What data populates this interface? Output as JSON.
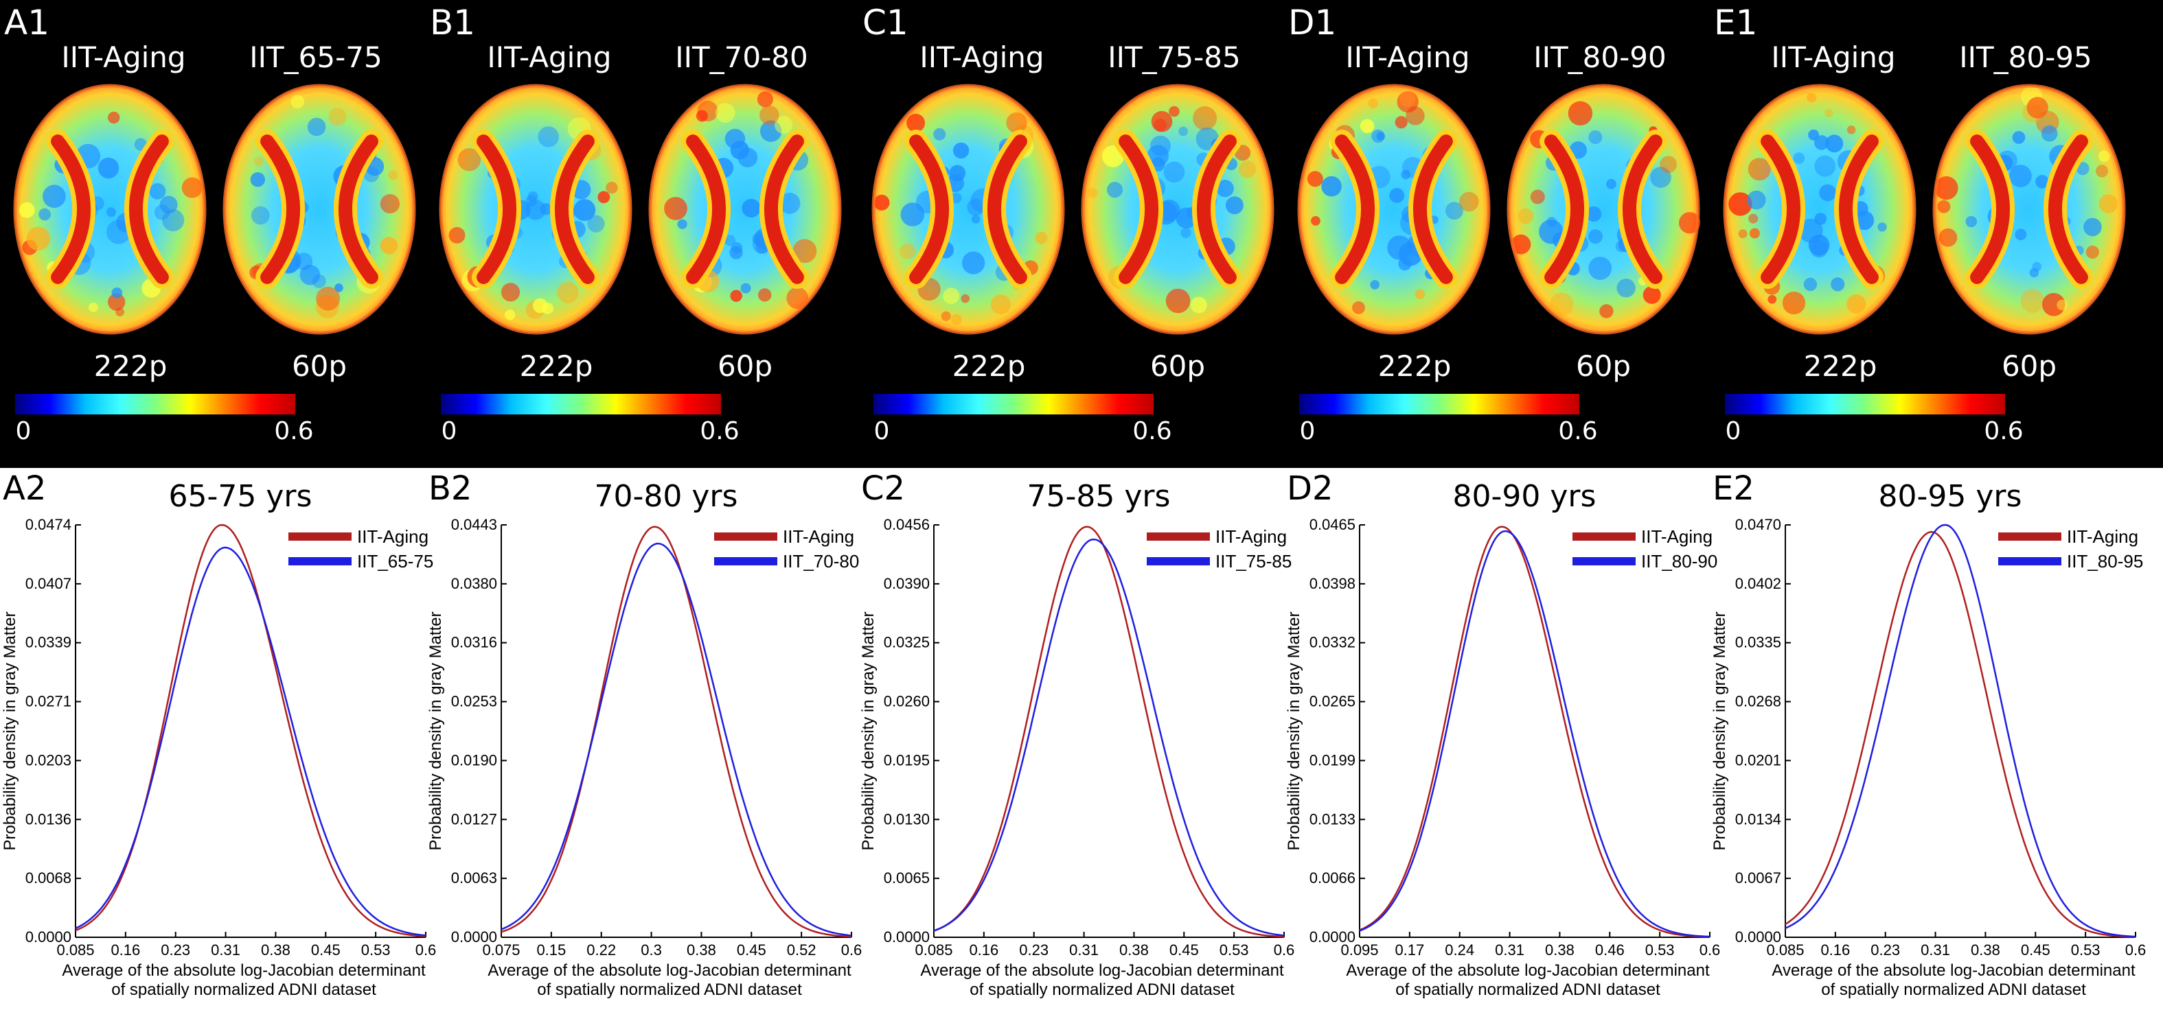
{
  "colors": {
    "series_aging": "#b01e1e",
    "series_study": "#1e1ee0",
    "background_top": "#000000",
    "colormap": [
      "#00007f",
      "#0000ff",
      "#00bfff",
      "#40ffff",
      "#80ff80",
      "#ffff00",
      "#ff8000",
      "#ff0000",
      "#bf0000"
    ]
  },
  "brain_panels": [
    {
      "letter": "A1",
      "left_title": "IIT-Aging",
      "right_title": "IIT_65-75",
      "left_count": "222p",
      "right_count": "60p",
      "cbar_min": "0",
      "cbar_max": "0.6"
    },
    {
      "letter": "B1",
      "left_title": "IIT-Aging",
      "right_title": "IIT_70-80",
      "left_count": "222p",
      "right_count": "60p",
      "cbar_min": "0",
      "cbar_max": "0.6"
    },
    {
      "letter": "C1",
      "left_title": "IIT-Aging",
      "right_title": "IIT_75-85",
      "left_count": "222p",
      "right_count": "60p",
      "cbar_min": "0",
      "cbar_max": "0.6"
    },
    {
      "letter": "D1",
      "left_title": "IIT-Aging",
      "right_title": "IIT_80-90",
      "left_count": "222p",
      "right_count": "60p",
      "cbar_min": "0",
      "cbar_max": "0.6"
    },
    {
      "letter": "E1",
      "left_title": "IIT-Aging",
      "right_title": "IIT_80-95",
      "left_count": "222p",
      "right_count": "60p",
      "cbar_min": "0",
      "cbar_max": "0.6"
    }
  ],
  "chart_data": [
    {
      "type": "line",
      "letter": "A2",
      "title": "65-75 yrs",
      "ylabel": "Probability density in gray Matter",
      "xlabel_line1": "Average of the absolute log-Jacobian determinant",
      "xlabel_line2": "of spatially normalized ADNI dataset",
      "xlim": [
        0.085,
        0.6
      ],
      "ylim": [
        0,
        0.0474
      ],
      "xticks": [
        "0.085",
        "0.16",
        "0.23",
        "0.31",
        "0.38",
        "0.45",
        "0.53",
        "0.6"
      ],
      "yticks": [
        "0.0000",
        "0.0068",
        "0.0136",
        "0.0203",
        "0.0271",
        "0.0339",
        "0.0407",
        "0.0474"
      ],
      "legend": [
        "IIT-Aging",
        "IIT_65-75"
      ],
      "series": [
        {
          "name": "IIT-Aging",
          "peak": 0.0474,
          "mu": 0.3,
          "sl": 0.075,
          "sr": 0.086
        },
        {
          "name": "IIT_65-75",
          "peak": 0.0448,
          "mu": 0.305,
          "sl": 0.08,
          "sr": 0.09
        }
      ]
    },
    {
      "type": "line",
      "letter": "B2",
      "title": "70-80 yrs",
      "ylabel": "Probability density in gray Matter",
      "xlabel_line1": "Average of the absolute log-Jacobian determinant",
      "xlabel_line2": "of spatially normalized ADNI dataset",
      "xlim": [
        0.075,
        0.6
      ],
      "ylim": [
        0,
        0.0443
      ],
      "xticks": [
        "0.075",
        "0.15",
        "0.22",
        "0.3",
        "0.38",
        "0.45",
        "0.52",
        "0.6"
      ],
      "yticks": [
        "0.0000",
        "0.0063",
        "0.0127",
        "0.0190",
        "0.0253",
        "0.0316",
        "0.0380",
        "0.0443"
      ],
      "legend": [
        "IIT-Aging",
        "IIT_70-80"
      ],
      "series": [
        {
          "name": "IIT-Aging",
          "peak": 0.0441,
          "mu": 0.305,
          "sl": 0.078,
          "sr": 0.082
        },
        {
          "name": "IIT_70-80",
          "peak": 0.0423,
          "mu": 0.31,
          "sl": 0.084,
          "sr": 0.088
        }
      ]
    },
    {
      "type": "line",
      "letter": "C2",
      "title": "75-85 yrs",
      "ylabel": "Probability density in gray Matter",
      "xlabel_line1": "Average of the absolute log-Jacobian determinant",
      "xlabel_line2": "of spatially normalized ADNI dataset",
      "xlim": [
        0.085,
        0.6
      ],
      "ylim": [
        0,
        0.0456
      ],
      "xticks": [
        "0.085",
        "0.16",
        "0.23",
        "0.31",
        "0.38",
        "0.45",
        "0.53",
        "0.6"
      ],
      "yticks": [
        "0.0000",
        "0.0065",
        "0.0130",
        "0.0195",
        "0.0260",
        "0.0325",
        "0.0390",
        "0.0456"
      ],
      "legend": [
        "IIT-Aging",
        "IIT_75-85"
      ],
      "series": [
        {
          "name": "IIT-Aging",
          "peak": 0.0454,
          "mu": 0.31,
          "sl": 0.078,
          "sr": 0.08
        },
        {
          "name": "IIT_75-85",
          "peak": 0.044,
          "mu": 0.32,
          "sl": 0.082,
          "sr": 0.085
        }
      ]
    },
    {
      "type": "line",
      "letter": "D2",
      "title": "80-90 yrs",
      "ylabel": "Probability density in gray Matter",
      "xlabel_line1": "Average of the absolute log-Jacobian determinant",
      "xlabel_line2": "of spatially normalized ADNI dataset",
      "xlim": [
        0.095,
        0.6
      ],
      "ylim": [
        0,
        0.0465
      ],
      "xticks": [
        "0.095",
        "0.17",
        "0.24",
        "0.31",
        "0.38",
        "0.46",
        "0.53",
        "0.6"
      ],
      "yticks": [
        "0.0000",
        "0.0066",
        "0.0133",
        "0.0199",
        "0.0265",
        "0.0332",
        "0.0398",
        "0.0465"
      ],
      "legend": [
        "IIT-Aging",
        "IIT_80-90"
      ],
      "series": [
        {
          "name": "IIT-Aging",
          "peak": 0.0463,
          "mu": 0.3,
          "sl": 0.072,
          "sr": 0.08
        },
        {
          "name": "IIT_80-90",
          "peak": 0.0458,
          "mu": 0.305,
          "sl": 0.073,
          "sr": 0.082
        }
      ]
    },
    {
      "type": "line",
      "letter": "E2",
      "title": "80-95 yrs",
      "ylabel": "Probability density in gray Matter",
      "xlabel_line1": "Average of the absolute log-Jacobian determinant",
      "xlabel_line2": "of spatially normalized ADNI dataset",
      "xlim": [
        0.085,
        0.6
      ],
      "ylim": [
        0,
        0.047
      ],
      "xticks": [
        "0.085",
        "0.16",
        "0.23",
        "0.31",
        "0.38",
        "0.45",
        "0.53",
        "0.6"
      ],
      "yticks": [
        "0.0000",
        "0.0067",
        "0.0134",
        "0.0201",
        "0.0268",
        "0.0335",
        "0.0402",
        "0.0470"
      ],
      "legend": [
        "IIT-Aging",
        "IIT_80-95"
      ],
      "series": [
        {
          "name": "IIT-Aging",
          "peak": 0.0462,
          "mu": 0.3,
          "sl": 0.082,
          "sr": 0.08
        },
        {
          "name": "IIT_80-95",
          "peak": 0.047,
          "mu": 0.32,
          "sl": 0.085,
          "sr": 0.078
        }
      ]
    }
  ]
}
